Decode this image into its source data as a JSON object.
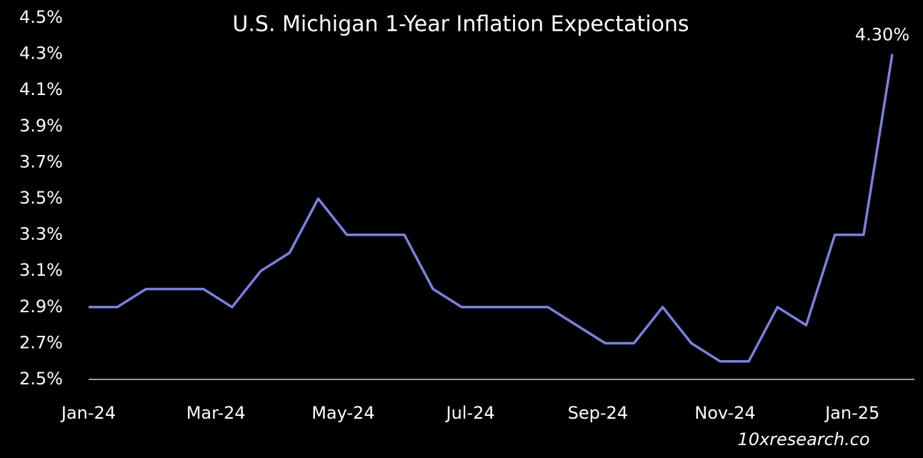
{
  "chart_data": {
    "type": "line",
    "title": "U.S. Michigan 1-Year Inflation Expectations",
    "x_labels": [
      "Jan-24",
      "Mar-24",
      "May-24",
      "Jul-24",
      "Sep-24",
      "Nov-24",
      "Jan-25"
    ],
    "series": [
      {
        "name": "U.S. Michigan 1-Year Inflation Expectations",
        "color": "#7b80e0",
        "values": [
          2.9,
          2.9,
          3.0,
          3.0,
          3.0,
          2.9,
          3.1,
          3.2,
          3.5,
          3.3,
          3.3,
          3.3,
          3.0,
          2.9,
          2.9,
          2.9,
          2.9,
          2.8,
          2.7,
          2.7,
          2.9,
          2.7,
          2.6,
          2.6,
          2.9,
          2.8,
          3.3,
          3.3,
          4.3
        ]
      }
    ],
    "last_value_label": "4.30%",
    "ylim": [
      2.5,
      4.5
    ],
    "yticks": [
      {
        "value": 2.5,
        "label": "2.5%"
      },
      {
        "value": 2.7,
        "label": "2.7%"
      },
      {
        "value": 2.9,
        "label": "2.9%"
      },
      {
        "value": 3.1,
        "label": "3.1%"
      },
      {
        "value": 3.3,
        "label": "3.3%"
      },
      {
        "value": 3.5,
        "label": "3.5%"
      },
      {
        "value": 3.7,
        "label": "3.7%"
      },
      {
        "value": 3.9,
        "label": "3.9%"
      },
      {
        "value": 4.1,
        "label": "4.1%"
      },
      {
        "value": 4.3,
        "label": "4.3%"
      },
      {
        "value": 4.5,
        "label": "4.5%"
      }
    ],
    "grid": false,
    "source": "10xresearch.co"
  }
}
